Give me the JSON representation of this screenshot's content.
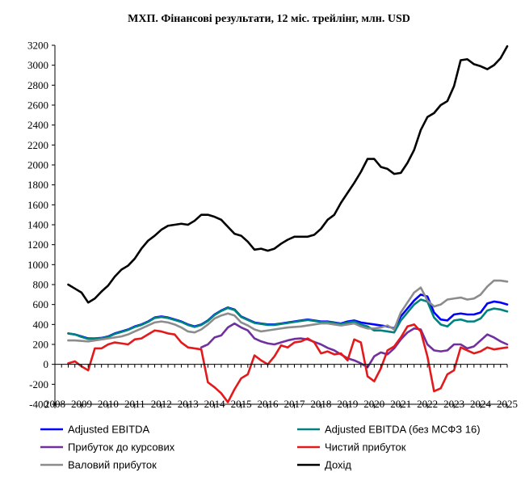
{
  "chart_data": {
    "type": "line",
    "title": "МХП. Фінансові результати, 12 міс. трейлінг, млн. USD",
    "xlabel": "",
    "ylabel": "",
    "ylim": [
      -400,
      3200
    ],
    "yticks": [
      3200,
      3000,
      2800,
      2600,
      2400,
      2200,
      2000,
      1800,
      1600,
      1400,
      1200,
      1000,
      800,
      600,
      400,
      200,
      0,
      -200,
      -400
    ],
    "xlim": [
      2008,
      2025
    ],
    "x_tick_labels": [
      "2008",
      "2009",
      "2010",
      "2011",
      "2012",
      "2013",
      "2014",
      "2015",
      "2016",
      "2017",
      "2018",
      "2019",
      "2020",
      "2021",
      "2022",
      "2023",
      "2024",
      "2025"
    ],
    "x_tick_values": [
      2008,
      2009,
      2010,
      2011,
      2012,
      2013,
      2014,
      2015,
      2016,
      2017,
      2018,
      2019,
      2020,
      2021,
      2022,
      2023,
      2024,
      2025
    ],
    "x": [
      2008.5,
      2008.75,
      2009.0,
      2009.25,
      2009.5,
      2009.75,
      2010.0,
      2010.25,
      2010.5,
      2010.75,
      2011.0,
      2011.25,
      2011.5,
      2011.75,
      2012.0,
      2012.25,
      2012.5,
      2012.75,
      2013.0,
      2013.25,
      2013.5,
      2013.75,
      2014.0,
      2014.25,
      2014.5,
      2014.75,
      2015.0,
      2015.25,
      2015.5,
      2015.75,
      2016.0,
      2016.25,
      2016.5,
      2016.75,
      2017.0,
      2017.25,
      2017.5,
      2017.75,
      2018.0,
      2018.25,
      2018.5,
      2018.75,
      2019.0,
      2019.25,
      2019.5,
      2019.75,
      2020.0,
      2020.25,
      2020.5,
      2020.75,
      2021.0,
      2021.25,
      2021.5,
      2021.75,
      2022.0,
      2022.25,
      2022.5,
      2022.75,
      2023.0,
      2023.25,
      2023.5,
      2023.75,
      2024.0,
      2024.25,
      2024.5,
      2024.75,
      2025.0
    ],
    "series": [
      {
        "name": "Adjusted EBITDA",
        "color": "#0000ff",
        "values": [
          310,
          300,
          280,
          260,
          260,
          265,
          280,
          310,
          330,
          350,
          380,
          400,
          430,
          470,
          480,
          470,
          450,
          430,
          400,
          380,
          400,
          440,
          500,
          540,
          570,
          550,
          480,
          450,
          420,
          410,
          400,
          400,
          410,
          420,
          430,
          440,
          450,
          440,
          430,
          430,
          420,
          410,
          430,
          440,
          420,
          410,
          400,
          390,
          380,
          360,
          480,
          560,
          640,
          700,
          680,
          520,
          450,
          440,
          500,
          510,
          500,
          500,
          520,
          610,
          630,
          620,
          600
        ]
      },
      {
        "name": "Adjusted EBITDA  (без МСФЗ 16)",
        "color": "#00827f",
        "values": [
          310,
          300,
          275,
          255,
          258,
          262,
          275,
          305,
          325,
          345,
          375,
          395,
          425,
          465,
          475,
          465,
          445,
          425,
          395,
          375,
          395,
          435,
          495,
          535,
          565,
          545,
          475,
          445,
          415,
          405,
          395,
          395,
          405,
          415,
          425,
          435,
          445,
          435,
          425,
          425,
          415,
          405,
          420,
          430,
          400,
          380,
          340,
          340,
          330,
          320,
          440,
          520,
          600,
          650,
          630,
          470,
          400,
          380,
          440,
          450,
          430,
          430,
          460,
          540,
          560,
          550,
          530
        ]
      },
      {
        "name": "Прибуток до курсових",
        "color": "#7030a0",
        "values": [
          null,
          null,
          null,
          null,
          null,
          null,
          null,
          null,
          null,
          null,
          null,
          null,
          null,
          null,
          null,
          null,
          null,
          null,
          null,
          null,
          170,
          200,
          270,
          290,
          370,
          410,
          370,
          340,
          260,
          230,
          210,
          200,
          220,
          240,
          255,
          260,
          250,
          225,
          200,
          165,
          140,
          100,
          60,
          40,
          10,
          -30,
          80,
          120,
          100,
          160,
          250,
          320,
          360,
          350,
          200,
          140,
          130,
          140,
          200,
          200,
          160,
          180,
          240,
          300,
          270,
          230,
          200
        ]
      },
      {
        "name": "Чистий прибуток",
        "color": "#e31a1c",
        "values": [
          10,
          30,
          -20,
          -60,
          160,
          160,
          200,
          220,
          210,
          200,
          250,
          260,
          300,
          340,
          330,
          310,
          300,
          220,
          170,
          160,
          150,
          -180,
          -230,
          -290,
          -380,
          -250,
          -140,
          -100,
          90,
          40,
          0,
          80,
          190,
          170,
          220,
          230,
          260,
          220,
          110,
          130,
          100,
          110,
          40,
          250,
          220,
          -120,
          -170,
          -40,
          140,
          180,
          270,
          380,
          400,
          330,
          80,
          -270,
          -240,
          -100,
          -60,
          170,
          140,
          110,
          130,
          170,
          150,
          160,
          170
        ]
      },
      {
        "name": "Валовий прибуток",
        "color": "#8c8c8c",
        "values": [
          240,
          240,
          235,
          230,
          240,
          250,
          260,
          270,
          280,
          300,
          330,
          360,
          390,
          420,
          430,
          420,
          400,
          370,
          330,
          320,
          350,
          400,
          460,
          490,
          510,
          490,
          420,
          390,
          350,
          330,
          340,
          350,
          360,
          370,
          375,
          380,
          390,
          400,
          410,
          410,
          400,
          390,
          400,
          410,
          380,
          360,
          360,
          370,
          390,
          350,
          520,
          620,
          720,
          770,
          640,
          580,
          600,
          650,
          660,
          670,
          650,
          660,
          700,
          780,
          840,
          840,
          830
        ]
      },
      {
        "name": "Дохід",
        "color": "#000000",
        "values": [
          800,
          760,
          720,
          620,
          660,
          730,
          790,
          880,
          950,
          990,
          1060,
          1160,
          1240,
          1290,
          1350,
          1390,
          1400,
          1410,
          1400,
          1440,
          1500,
          1500,
          1480,
          1450,
          1380,
          1310,
          1290,
          1230,
          1150,
          1160,
          1140,
          1160,
          1210,
          1250,
          1280,
          1280,
          1280,
          1300,
          1360,
          1450,
          1500,
          1620,
          1720,
          1820,
          1930,
          2060,
          2060,
          1980,
          1960,
          1910,
          1920,
          2020,
          2150,
          2350,
          2480,
          2520,
          2600,
          2640,
          2790,
          3050,
          3060,
          3010,
          2990,
          2960,
          3000,
          3070,
          3190
        ]
      }
    ],
    "legend": {
      "placement": "bottom",
      "entries": [
        "Adjusted EBITDA",
        "Adjusted EBITDA  (без МСФЗ 16)",
        "Прибуток до курсових",
        "Чистий прибуток",
        "Валовий прибуток",
        "Дохід"
      ]
    },
    "grid": false
  }
}
